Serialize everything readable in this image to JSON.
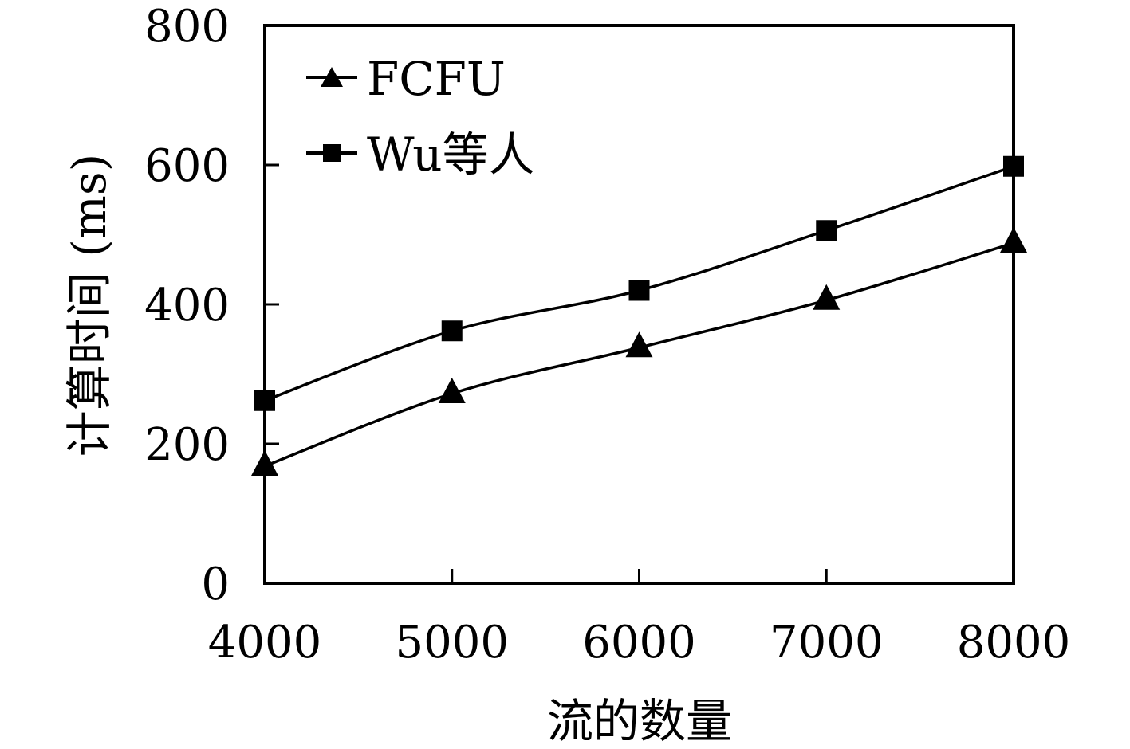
{
  "chart_data": {
    "type": "line",
    "xlabel": "流的数量",
    "ylabel": "计算时间 (ms)",
    "x": [
      4000,
      5000,
      6000,
      7000,
      8000
    ],
    "xlim": [
      4000,
      8000
    ],
    "ylim": [
      0,
      800
    ],
    "xticks": [
      "4000",
      "5000",
      "6000",
      "7000",
      "8000"
    ],
    "yticks": [
      "0",
      "200",
      "400",
      "600",
      "800"
    ],
    "grid": false,
    "legend_position": "top-left",
    "series": [
      {
        "name": "FCFU",
        "marker": "triangle",
        "values": [
          168,
          272,
          338,
          406,
          488
        ]
      },
      {
        "name": "Wu等人",
        "marker": "square",
        "values": [
          262,
          362,
          420,
          506,
          598
        ]
      }
    ]
  }
}
